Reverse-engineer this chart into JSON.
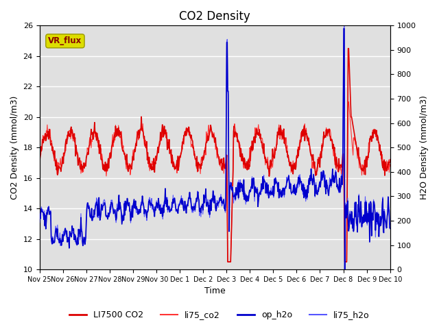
{
  "title": "CO2 Density",
  "xlabel": "Time",
  "ylabel_left": "CO2 Density (mmol/m3)",
  "ylabel_right": "H2O Density (mmol/m3)",
  "ylim_left": [
    10,
    26
  ],
  "ylim_right": [
    0,
    1000
  ],
  "yticks_left": [
    10,
    12,
    14,
    16,
    18,
    20,
    22,
    24,
    26
  ],
  "yticks_right": [
    0,
    100,
    200,
    300,
    400,
    500,
    600,
    700,
    800,
    900,
    1000
  ],
  "xtick_labels": [
    "Nov 25",
    "Nov 26",
    "Nov 27",
    "Nov 28",
    "Nov 29",
    "Nov 30",
    "Dec 1",
    "Dec 2",
    "Dec 3",
    "Dec 4",
    "Dec 5",
    "Dec 6",
    "Dec 7",
    "Dec 8",
    "Dec 9",
    "Dec 10"
  ],
  "background_color": "#e0e0e0",
  "grid_color": "#ffffff",
  "color_li7500": "#dd0000",
  "color_li75co2": "#ff3333",
  "color_op_h2o": "#0000cc",
  "color_li75h2o": "#5555ff",
  "vr_flux_box_color": "#dddd00",
  "vr_flux_text_color": "#880000",
  "title_fontsize": 12,
  "axis_fontsize": 9,
  "tick_fontsize": 8,
  "legend_fontsize": 9
}
